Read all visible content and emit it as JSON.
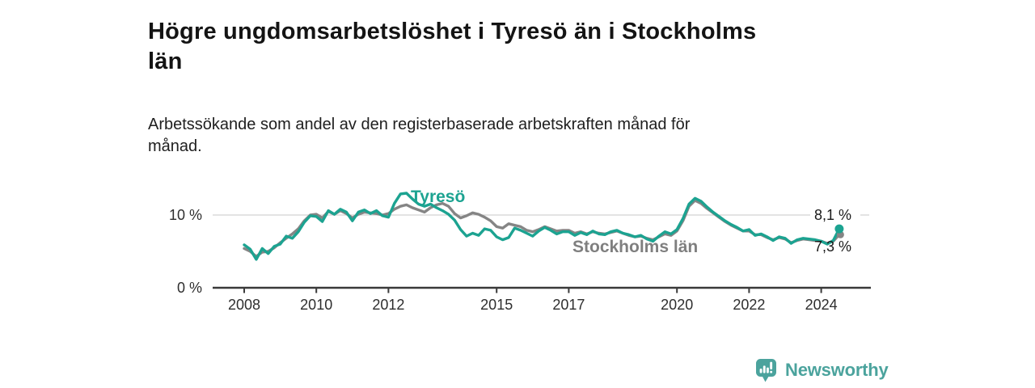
{
  "header": {
    "title": "Högre ungdomsarbetslöshet i Tyresö än i Stockholms län",
    "title_lines": [
      "Högre ungdomsarbetslöshet i Tyresö än i Stockholms",
      "län"
    ],
    "subtitle": "Arbetssökande som andel av den registerbaserade arbetskraften månad för månad.",
    "subtitle_lines": [
      "Arbetssökande som andel av den registerbaserade arbetskraften månad för",
      "månad."
    ]
  },
  "branding": {
    "name": "Newsworthy",
    "icon": "speech-bubble-bar-chart-icon",
    "color": "#4ba39d"
  },
  "chart_data": {
    "type": "line",
    "title": "Högre ungdomsarbetslöshet i Tyresö än i Stockholms län",
    "unit": "%",
    "x_unit": "decimal year, monthly data plotted (approximated at 2-month steps)",
    "x_start": 2008.0,
    "x_step": 0.16667,
    "x_end": 2024.5,
    "xticks": [
      2008,
      2010,
      2012,
      2015,
      2017,
      2020,
      2022,
      2024
    ],
    "yticks": [
      {
        "value": 0,
        "label": "0 %"
      },
      {
        "value": 10,
        "label": "10 %"
      }
    ],
    "ylim": [
      0,
      14.5
    ],
    "grid": "single horizontal gridline at 10 %",
    "legend_position": "labels drawn on chart next to lines",
    "series": [
      {
        "name": "Stockholms län",
        "color": "#858585",
        "last_value": 7.3,
        "last_value_label": "7,3 %",
        "values": [
          5.4,
          5.0,
          4.3,
          4.9,
          5.0,
          5.5,
          6.2,
          6.8,
          7.4,
          8.1,
          9.2,
          10.0,
          10.1,
          9.6,
          10.5,
          10.1,
          10.6,
          10.2,
          9.6,
          10.1,
          10.4,
          10.3,
          10.2,
          10.0,
          10.2,
          10.8,
          11.2,
          11.4,
          11.0,
          10.7,
          10.4,
          11.0,
          11.4,
          11.6,
          11.2,
          10.2,
          9.6,
          9.9,
          10.3,
          10.1,
          9.7,
          9.2,
          8.4,
          8.2,
          8.8,
          8.6,
          8.4,
          7.9,
          7.7,
          8.0,
          8.4,
          8.1,
          7.8,
          7.9,
          7.9,
          7.5,
          7.7,
          7.4,
          7.7,
          7.5,
          7.4,
          7.6,
          7.8,
          7.5,
          7.2,
          7.0,
          7.1,
          6.8,
          6.6,
          7.0,
          7.4,
          7.2,
          7.8,
          9.2,
          11.2,
          12.0,
          11.6,
          10.9,
          10.3,
          9.7,
          9.1,
          8.6,
          8.2,
          7.8,
          7.8,
          7.3,
          7.3,
          6.9,
          6.6,
          6.9,
          6.7,
          6.2,
          6.5,
          6.7,
          6.6,
          6.5,
          6.4,
          6.1,
          6.4,
          7.3
        ]
      },
      {
        "name": "Tyresö",
        "color": "#1ca391",
        "last_value": 8.1,
        "last_value_label": "8,1 %",
        "values": [
          5.9,
          5.3,
          3.9,
          5.4,
          4.7,
          5.7,
          6.0,
          7.1,
          6.8,
          7.7,
          9.0,
          9.9,
          9.8,
          9.1,
          10.6,
          10.1,
          10.8,
          10.4,
          9.2,
          10.4,
          10.7,
          10.2,
          10.6,
          9.9,
          9.7,
          11.6,
          12.9,
          13.0,
          12.2,
          11.5,
          11.2,
          11.5,
          11.0,
          10.6,
          10.1,
          9.3,
          8.0,
          7.1,
          7.5,
          7.2,
          8.1,
          7.9,
          7.0,
          6.6,
          6.9,
          8.2,
          7.9,
          7.5,
          7.1,
          7.8,
          8.3,
          7.9,
          7.4,
          7.7,
          7.7,
          7.2,
          7.6,
          7.3,
          7.8,
          7.4,
          7.3,
          7.7,
          7.9,
          7.5,
          7.3,
          7.0,
          7.2,
          6.7,
          6.4,
          7.1,
          7.7,
          7.4,
          8.0,
          9.5,
          11.5,
          12.3,
          11.9,
          11.1,
          10.4,
          9.8,
          9.2,
          8.7,
          8.3,
          7.8,
          8.0,
          7.2,
          7.4,
          7.0,
          6.5,
          7.0,
          6.8,
          6.1,
          6.6,
          6.8,
          6.7,
          6.6,
          6.4,
          6.0,
          6.5,
          8.1
        ]
      }
    ]
  }
}
